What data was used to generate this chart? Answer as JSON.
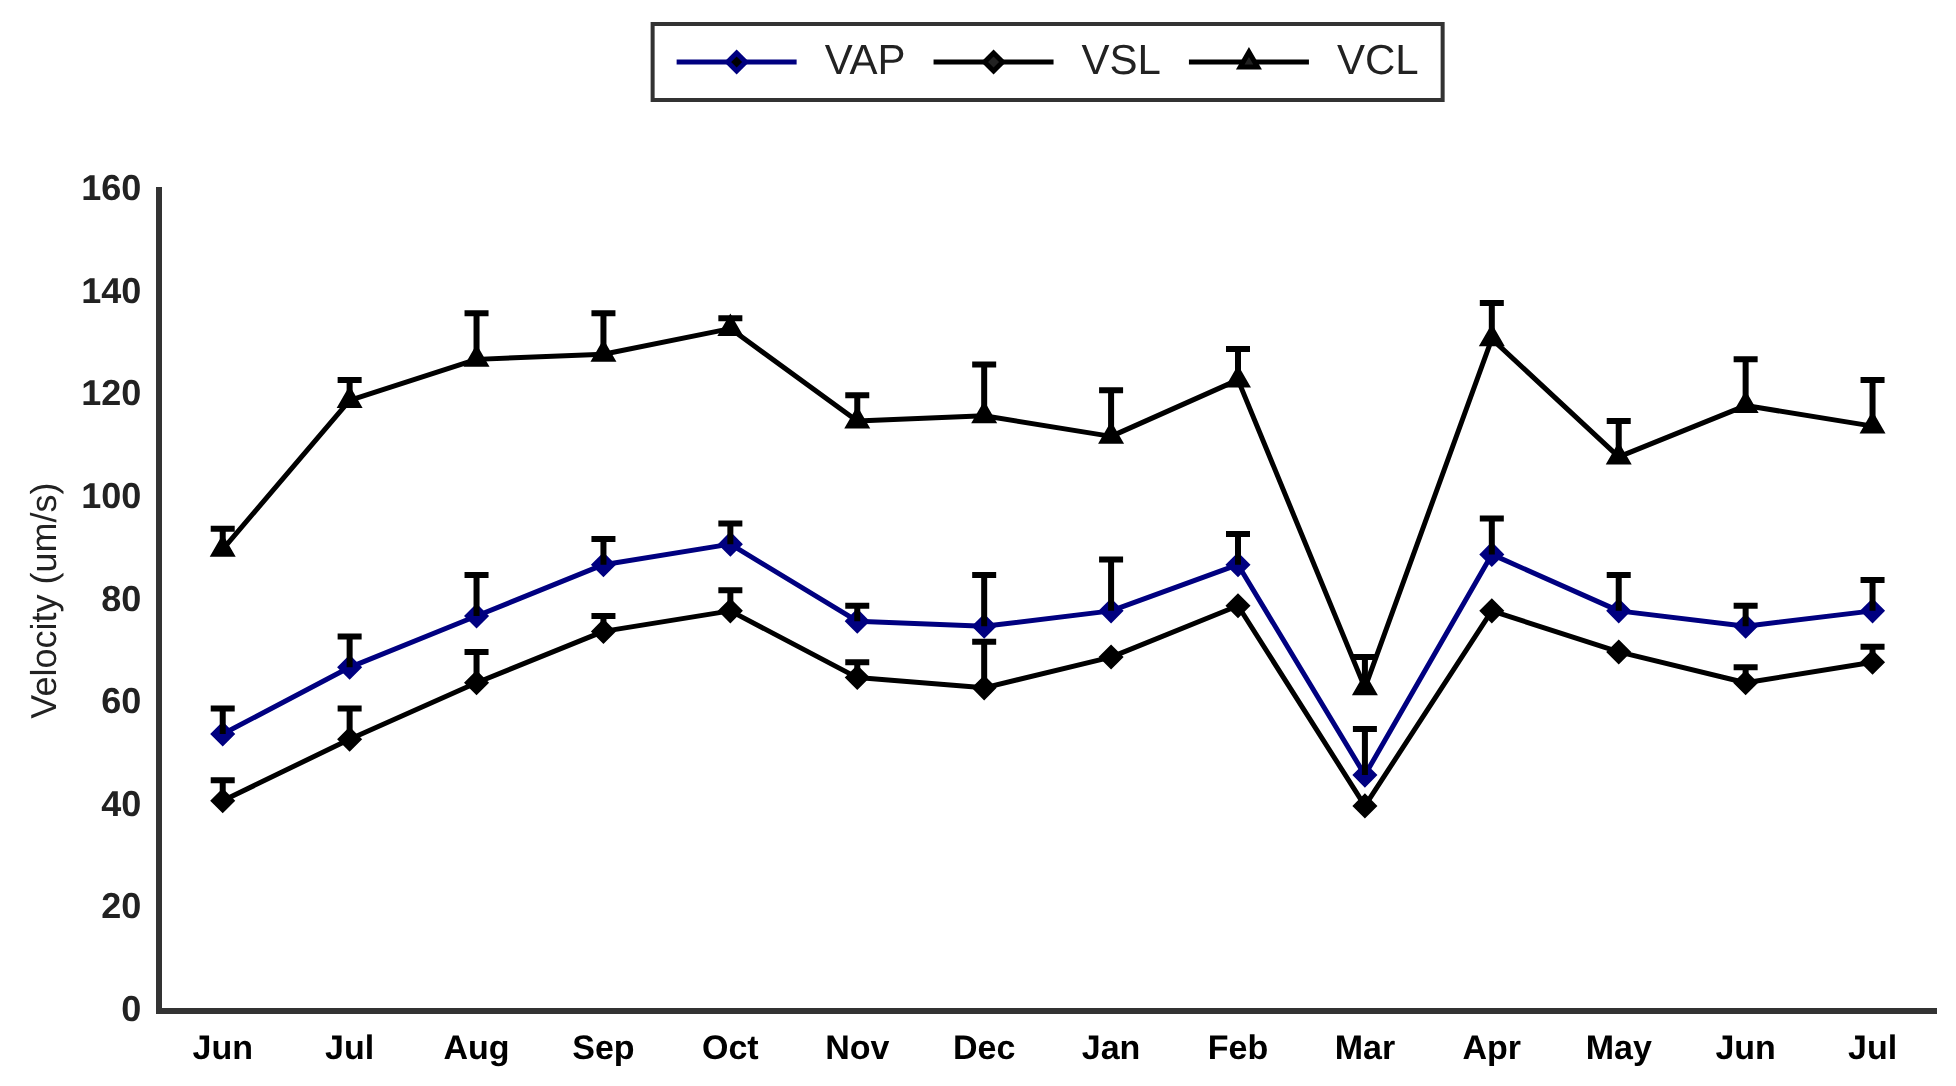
{
  "chart_data": {
    "type": "line",
    "ylabel": "Velocity (um/s)",
    "categories": [
      "Jun",
      "Jul",
      "Aug",
      "Sep",
      "Oct",
      "Nov",
      "Dec",
      "Jan",
      "Feb",
      "Mar",
      "Apr",
      "May",
      "Jun",
      "Jul"
    ],
    "series": [
      {
        "name": "VAP",
        "color": "#000080",
        "marker": "diamond",
        "values": [
          54,
          67,
          77,
          87,
          91,
          76,
          75,
          78,
          87,
          46,
          89,
          78,
          75,
          78
        ],
        "errors": [
          [
            54,
            59
          ],
          [
            67,
            73
          ],
          [
            77,
            85
          ],
          [
            87,
            92
          ],
          [
            91,
            95
          ],
          [
            76,
            79
          ],
          [
            75,
            85
          ],
          [
            78,
            88
          ],
          [
            87,
            93
          ],
          [
            46,
            55
          ],
          [
            89,
            96
          ],
          [
            78,
            85
          ],
          [
            75,
            79
          ],
          [
            78,
            84
          ]
        ]
      },
      {
        "name": "VSL",
        "color": "#000000",
        "marker": "diamond",
        "values": [
          41,
          53,
          64,
          74,
          78,
          65,
          63,
          69,
          79,
          40,
          78,
          70,
          64,
          68
        ],
        "errors": [
          [
            41,
            45
          ],
          [
            53,
            59
          ],
          [
            64,
            70
          ],
          [
            74,
            77
          ],
          [
            78,
            82
          ],
          [
            65,
            68
          ],
          [
            63,
            72
          ],
          null,
          null,
          null,
          null,
          null,
          [
            64,
            67
          ],
          [
            68,
            71
          ]
        ]
      },
      {
        "name": "VCL",
        "color": "#000000",
        "marker": "triangle",
        "values": [
          90,
          119,
          127,
          128,
          133,
          115,
          116,
          112,
          123,
          63,
          131,
          108,
          118,
          114
        ],
        "errors": [
          [
            90,
            94
          ],
          [
            119,
            123
          ],
          [
            127,
            136
          ],
          [
            128,
            136
          ],
          [
            133,
            135
          ],
          [
            115,
            120
          ],
          [
            116,
            126
          ],
          [
            112,
            121
          ],
          [
            123,
            129
          ],
          [
            63,
            69
          ],
          [
            131,
            138
          ],
          [
            108,
            115
          ],
          [
            118,
            127
          ],
          [
            114,
            123
          ]
        ]
      }
    ],
    "ylim": [
      0,
      160
    ],
    "yticks": [
      0,
      20,
      40,
      60,
      80,
      100,
      120,
      140,
      160
    ],
    "grid": false,
    "legend": "top",
    "line_style": "solid"
  }
}
